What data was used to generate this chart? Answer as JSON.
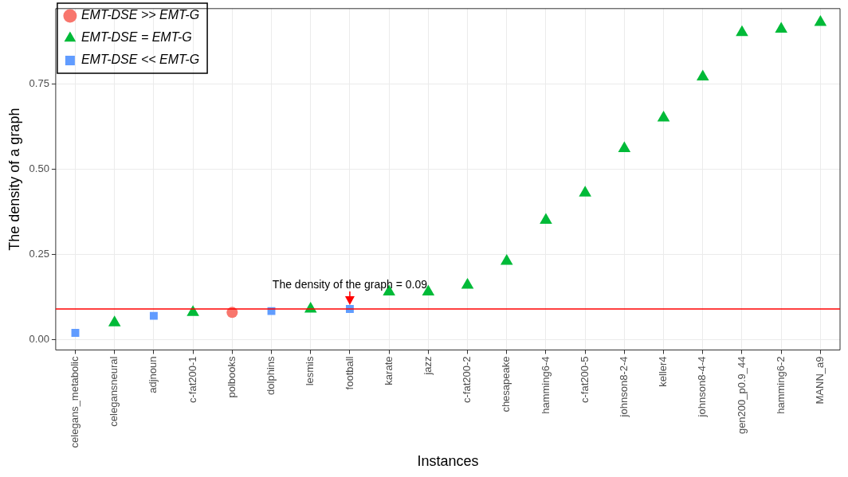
{
  "chart_data": {
    "type": "scatter",
    "xlabel": "Instances",
    "ylabel": "The density of a graph",
    "categories": [
      "celegans_metabolic",
      "celegansneural",
      "adjnoun",
      "c-fat200-1",
      "polbooks",
      "dolphins",
      "lesmis",
      "football",
      "karate",
      "jazz",
      "c-fat200-2",
      "chesapeake",
      "hamming6-4",
      "c-fat200-5",
      "johnson8-2-4",
      "keller4",
      "johnson8-4-4",
      "gen200_p0.9_44",
      "hamming6-2",
      "MANN_a9"
    ],
    "series": [
      {
        "name": "EMT-DSE >> EMT-G",
        "color": "#f8766d",
        "marker": "circle",
        "values": [
          null,
          null,
          null,
          null,
          0.08,
          null,
          null,
          null,
          null,
          null,
          null,
          null,
          null,
          null,
          null,
          null,
          null,
          null,
          null,
          null
        ]
      },
      {
        "name": "EMT-DSE = EMT-G",
        "color": "#00ba38",
        "marker": "triangle",
        "values": [
          null,
          0.05,
          null,
          0.08,
          null,
          null,
          0.09,
          null,
          0.14,
          0.14,
          0.16,
          0.23,
          0.35,
          0.43,
          0.56,
          0.65,
          0.77,
          0.9,
          0.91,
          0.93
        ]
      },
      {
        "name": "EMT-DSE << EMT-G",
        "color": "#619cff",
        "marker": "square",
        "values": [
          0.02,
          null,
          0.07,
          null,
          null,
          0.084,
          null,
          0.09,
          null,
          null,
          null,
          null,
          null,
          null,
          null,
          null,
          null,
          null,
          null,
          null
        ]
      }
    ],
    "ylim": [
      -0.03,
      0.97
    ],
    "yticks": [
      {
        "value": 0,
        "label": "0.00"
      },
      0.25,
      {
        "value": 0.5,
        "label": "0.50"
      },
      0.75
    ],
    "grid": true,
    "legend": "top left",
    "ref_lines": [
      {
        "axis": "y",
        "value": 0.09,
        "color": "#ff0000",
        "label": "The density of the graph = 0.09"
      }
    ]
  }
}
